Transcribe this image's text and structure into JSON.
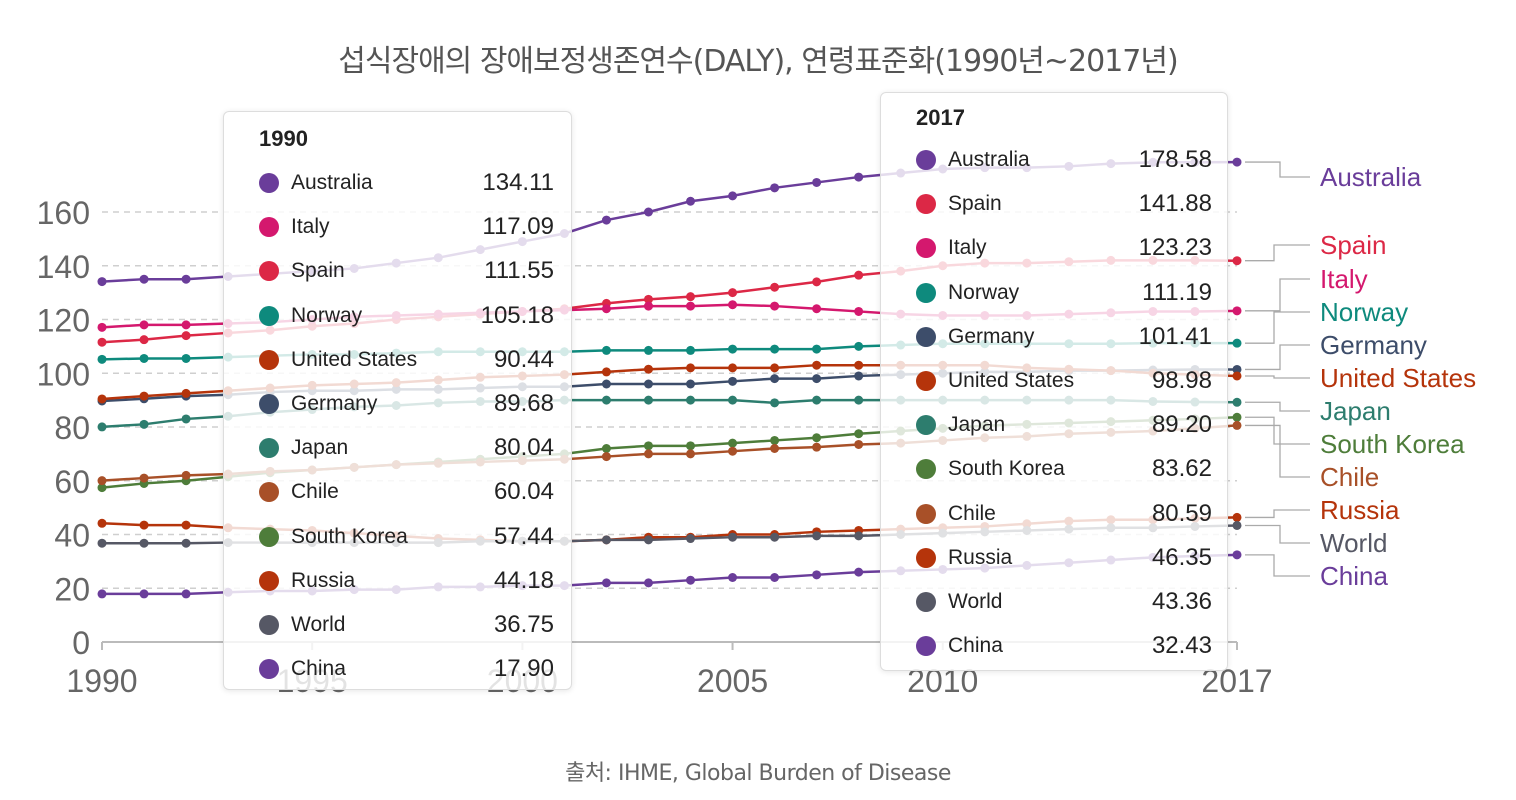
{
  "page": {
    "title": "섭식장애의 장애보정생존연수(DALY), 연령표준화(1990년~2017년)",
    "source": "출처: IHME, Global Burden of Disease"
  },
  "chart_data": {
    "type": "line",
    "title": "섭식장애의 장애보정생존연수(DALY), 연령표준화(1990년~2017년)",
    "xlabel": "",
    "ylabel": "",
    "xlim": [
      1990,
      2017
    ],
    "ylim": [
      0,
      180
    ],
    "x_ticks": [
      1990,
      1995,
      2000,
      2005,
      2010,
      2017
    ],
    "y_ticks": [
      0,
      20,
      40,
      60,
      80,
      100,
      120,
      140,
      160
    ],
    "x": [
      1990,
      1991,
      1992,
      1993,
      1994,
      1995,
      1996,
      1997,
      1998,
      1999,
      2000,
      2001,
      2002,
      2003,
      2004,
      2005,
      2006,
      2007,
      2008,
      2009,
      2010,
      2011,
      2012,
      2013,
      2014,
      2015,
      2016,
      2017
    ],
    "series": [
      {
        "name": "Australia",
        "color": "#6a3d9a",
        "values": [
          134.11,
          135,
          135,
          136,
          137,
          138,
          139,
          141,
          143,
          146,
          149,
          152,
          157,
          160,
          164,
          166,
          169,
          171,
          173,
          174.5,
          176,
          176.5,
          176.5,
          177,
          178,
          178.5,
          178.5,
          178.58
        ]
      },
      {
        "name": "Spain",
        "color": "#dc2846",
        "values": [
          111.55,
          112.5,
          114,
          115,
          116,
          117.5,
          118.5,
          120,
          121,
          122,
          123,
          124,
          126,
          127.5,
          128.5,
          130,
          132,
          134,
          136.5,
          138,
          140,
          141,
          141,
          141.5,
          142,
          142,
          142,
          141.88
        ]
      },
      {
        "name": "Italy",
        "color": "#d4186e",
        "values": [
          117.09,
          118,
          118,
          118.5,
          119,
          120,
          121,
          121.5,
          122,
          122.5,
          123,
          123.5,
          124,
          125,
          125,
          125.5,
          125,
          124,
          123,
          122,
          121.5,
          121.5,
          121.5,
          122,
          122.5,
          123,
          123,
          123.23
        ]
      },
      {
        "name": "Norway",
        "color": "#0e8a7d",
        "values": [
          105.18,
          105.5,
          105.5,
          106,
          106.5,
          107,
          107,
          107.5,
          108,
          108,
          108,
          108,
          108.5,
          108.5,
          108.5,
          109,
          109,
          109,
          110,
          110.5,
          111,
          111,
          111,
          111,
          111,
          111.2,
          111.2,
          111.19
        ]
      },
      {
        "name": "Germany",
        "color": "#3d4d6a",
        "values": [
          89.68,
          90.5,
          91.5,
          92,
          93,
          93.5,
          93.5,
          94,
          94,
          94.5,
          95,
          95,
          96,
          96,
          96,
          97,
          98,
          98,
          99,
          99.5,
          100,
          100.5,
          100.5,
          101,
          101,
          101.2,
          101.4,
          101.41
        ]
      },
      {
        "name": "United States",
        "color": "#b5340b",
        "values": [
          90.44,
          91.5,
          92.5,
          93.5,
          94.5,
          95.5,
          96,
          96.5,
          97.5,
          98.5,
          99,
          99.5,
          100.5,
          101.5,
          102,
          102,
          102,
          103,
          103,
          103,
          103,
          103,
          102,
          101.5,
          101,
          100,
          99.5,
          98.98
        ]
      },
      {
        "name": "Japan",
        "color": "#2d7d6e",
        "values": [
          80.04,
          81,
          83,
          84,
          85.5,
          86.5,
          87.5,
          88,
          89,
          89.5,
          89.5,
          90,
          90,
          90,
          90,
          90,
          89,
          90,
          90,
          90,
          90,
          90,
          90,
          90,
          90,
          89.5,
          89.3,
          89.2
        ]
      },
      {
        "name": "South Korea",
        "color": "#4e7d3a",
        "values": [
          57.44,
          59,
          60,
          61.5,
          63,
          64,
          65,
          66,
          67,
          68,
          69,
          70,
          72,
          73,
          73,
          74,
          75,
          76,
          77.5,
          78.5,
          79.5,
          80.5,
          81,
          81.5,
          82,
          82.5,
          83,
          83.62
        ]
      },
      {
        "name": "Chile",
        "color": "#a85028",
        "values": [
          60.04,
          61,
          62,
          62.5,
          63.5,
          64,
          65,
          66,
          66.5,
          67,
          67.5,
          68,
          69,
          70,
          70,
          71,
          72,
          72.5,
          73.5,
          74,
          75,
          76,
          76.5,
          77.5,
          78,
          78.5,
          79.5,
          80.59
        ]
      },
      {
        "name": "Russia",
        "color": "#b5340b",
        "values": [
          44.18,
          43.5,
          43.5,
          42.5,
          42,
          41.5,
          40.5,
          39.5,
          38.5,
          38,
          37.5,
          37.5,
          38,
          39,
          39,
          40,
          40,
          41,
          41.5,
          42,
          42.5,
          43,
          44,
          45,
          45.5,
          45.5,
          46,
          46.35
        ]
      },
      {
        "name": "World",
        "color": "#565865",
        "values": [
          36.75,
          36.75,
          36.75,
          37,
          37,
          37,
          37,
          37,
          37,
          37.5,
          37.5,
          37.5,
          38,
          38,
          38.5,
          39,
          39,
          39.5,
          39.5,
          40,
          40.5,
          41,
          41.5,
          42,
          42.5,
          42.5,
          43,
          43.36
        ]
      },
      {
        "name": "China",
        "color": "#6a3d9a",
        "values": [
          17.9,
          17.9,
          17.9,
          18.5,
          19,
          19,
          19.5,
          19.5,
          20.5,
          20.5,
          21,
          21,
          22,
          22,
          23,
          24,
          24,
          25,
          26,
          26.5,
          27,
          27.5,
          28.5,
          29.5,
          30.5,
          31.5,
          32,
          32.43
        ]
      }
    ],
    "end_labels": [
      {
        "name": "Australia",
        "color": "#6a3d9a"
      },
      {
        "name": "Spain",
        "color": "#dc2846"
      },
      {
        "name": "Italy",
        "color": "#d4186e"
      },
      {
        "name": "Norway",
        "color": "#0e8a7d"
      },
      {
        "name": "Germany",
        "color": "#3d4d6a"
      },
      {
        "name": "United States",
        "color": "#b5340b"
      },
      {
        "name": "Japan",
        "color": "#2d7d6e"
      },
      {
        "name": "South Korea",
        "color": "#4e7d3a"
      },
      {
        "name": "Chile",
        "color": "#a85028"
      },
      {
        "name": "Russia",
        "color": "#b5340b"
      },
      {
        "name": "World",
        "color": "#565865"
      },
      {
        "name": "China",
        "color": "#6a3d9a"
      }
    ]
  },
  "tooltip_1990": {
    "year": "1990",
    "rows": [
      {
        "name": "Australia",
        "value": "134.11",
        "color": "#6a3d9a"
      },
      {
        "name": "Italy",
        "value": "117.09",
        "color": "#d4186e"
      },
      {
        "name": "Spain",
        "value": "111.55",
        "color": "#dc2846"
      },
      {
        "name": "Norway",
        "value": "105.18",
        "color": "#0e8a7d"
      },
      {
        "name": "United States",
        "value": "90.44",
        "color": "#b5340b"
      },
      {
        "name": "Germany",
        "value": "89.68",
        "color": "#3d4d6a"
      },
      {
        "name": "Japan",
        "value": "80.04",
        "color": "#2d7d6e"
      },
      {
        "name": "Chile",
        "value": "60.04",
        "color": "#a85028"
      },
      {
        "name": "South Korea",
        "value": "57.44",
        "color": "#4e7d3a"
      },
      {
        "name": "Russia",
        "value": "44.18",
        "color": "#b5340b"
      },
      {
        "name": "World",
        "value": "36.75",
        "color": "#565865"
      },
      {
        "name": "China",
        "value": "17.90",
        "color": "#6a3d9a"
      }
    ]
  },
  "tooltip_2017": {
    "year": "2017",
    "rows": [
      {
        "name": "Australia",
        "value": "178.58",
        "color": "#6a3d9a"
      },
      {
        "name": "Spain",
        "value": "141.88",
        "color": "#dc2846"
      },
      {
        "name": "Italy",
        "value": "123.23",
        "color": "#d4186e"
      },
      {
        "name": "Norway",
        "value": "111.19",
        "color": "#0e8a7d"
      },
      {
        "name": "Germany",
        "value": "101.41",
        "color": "#3d4d6a"
      },
      {
        "name": "United States",
        "value": "98.98",
        "color": "#b5340b"
      },
      {
        "name": "Japan",
        "value": "89.20",
        "color": "#2d7d6e"
      },
      {
        "name": "South Korea",
        "value": "83.62",
        "color": "#4e7d3a"
      },
      {
        "name": "Chile",
        "value": "80.59",
        "color": "#a85028"
      },
      {
        "name": "Russia",
        "value": "46.35",
        "color": "#b5340b"
      },
      {
        "name": "World",
        "value": "43.36",
        "color": "#565865"
      },
      {
        "name": "China",
        "value": "32.43",
        "color": "#6a3d9a"
      }
    ]
  }
}
